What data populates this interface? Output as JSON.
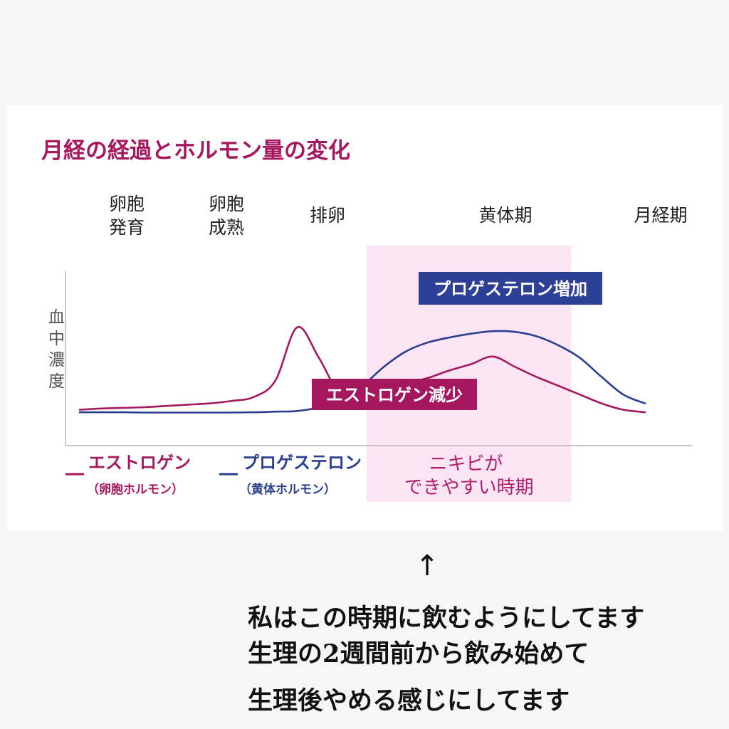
{
  "chart_data": {
    "type": "line",
    "title": "月経の経過とホルモン量の変化",
    "ylabel": "血中濃度",
    "phases": [
      {
        "lines": [
          "卵胞",
          "発育"
        ]
      },
      {
        "lines": [
          "卵胞",
          "成熟"
        ]
      },
      {
        "lines": [
          "排卵"
        ]
      },
      {
        "lines": [
          "黄体期"
        ]
      },
      {
        "lines": [
          "月経期"
        ]
      }
    ],
    "x": [
      0,
      1,
      2,
      3,
      4,
      5,
      6,
      7,
      8,
      9,
      10,
      11,
      12,
      13,
      14,
      15,
      16,
      17,
      18,
      19,
      20,
      21,
      22,
      23,
      24,
      25,
      26
    ],
    "xlim": [
      0,
      26
    ],
    "ylim": [
      0,
      100
    ],
    "series": [
      {
        "name": "エストロゲン",
        "sub": "（卵胞ホルモン）",
        "color": "#a5175f",
        "values": [
          7,
          8,
          8.5,
          9,
          10,
          11,
          12,
          14,
          17,
          30,
          72,
          48,
          19,
          21,
          24,
          28,
          32,
          38,
          43,
          49,
          41,
          33,
          26,
          19,
          12,
          7,
          5
        ]
      },
      {
        "name": "プロゲステロン",
        "sub": "（黄体ホルモン）",
        "color": "#2a3f8f",
        "values": [
          5,
          5,
          5,
          4.8,
          4.8,
          4.8,
          4.8,
          4.8,
          5,
          5.5,
          6,
          9,
          16,
          26,
          41,
          53,
          60,
          64,
          67,
          69,
          68.5,
          65,
          58,
          48,
          33,
          19,
          12
        ]
      }
    ],
    "callouts": [
      {
        "text": "プロゲステロン増加",
        "color": "#2e3f96"
      },
      {
        "text": "エストロゲン減少",
        "color": "#a5175f"
      }
    ],
    "highlight": {
      "x_range": [
        13.2,
        22.6
      ],
      "fill": "#fbe4f3",
      "label_lines": [
        "ニキビが",
        "できやすい時期"
      ]
    }
  },
  "annotation": {
    "arrow": "↑",
    "lines": [
      "私はこの時期に飲むようにしてます",
      "生理の2週間前から飲み始めて",
      "生理後やめる感じにしてます"
    ]
  }
}
